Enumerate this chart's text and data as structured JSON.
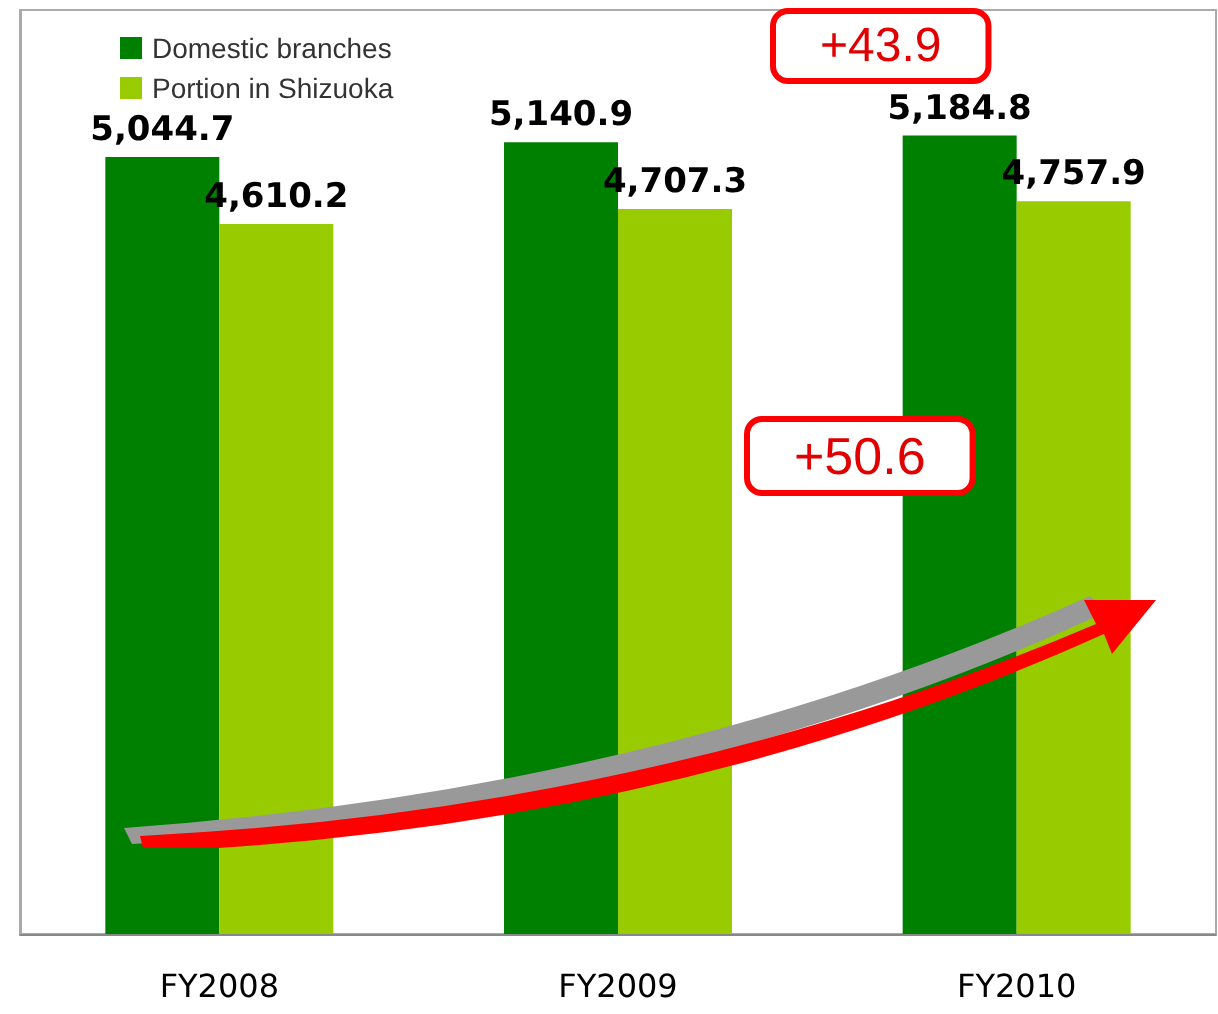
{
  "chart_data": {
    "type": "bar",
    "categories": [
      "FY2008",
      "FY2009",
      "FY2010"
    ],
    "series": [
      {
        "name": "Domestic branches",
        "color": "#008000",
        "values": [
          5044.7,
          5140.9,
          5184.8
        ],
        "value_labels": [
          "5,044.7",
          "5,140.9",
          "5,184.8"
        ]
      },
      {
        "name": "Portion in Shizuoka",
        "color": "#99cc00",
        "values": [
          4610.2,
          4707.3,
          4757.9
        ],
        "value_labels": [
          "4,610.2",
          "4,707.3",
          "4,757.9"
        ]
      }
    ],
    "tick_labels": "x",
    "legend": "top left",
    "grid": false,
    "annotations": [
      "+43.9",
      "+50.6"
    ]
  }
}
